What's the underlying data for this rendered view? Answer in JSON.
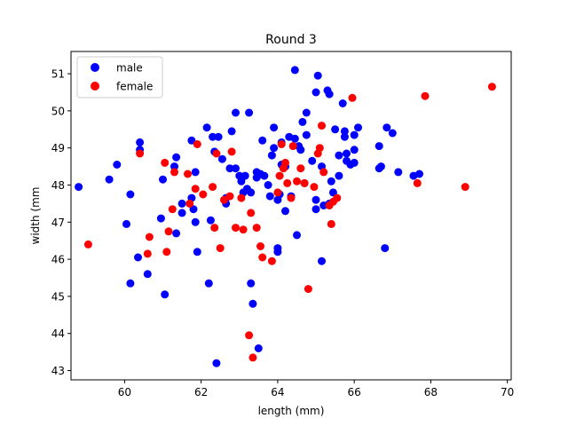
{
  "chart_data": {
    "type": "scatter",
    "title": "Round 3",
    "xlabel": "length (mm)",
    "ylabel": "width (mm",
    "xlim": [
      58.6,
      70.1
    ],
    "ylim": [
      42.75,
      51.6
    ],
    "xticks": [
      60,
      62,
      64,
      66,
      68,
      70
    ],
    "yticks": [
      43,
      44,
      45,
      46,
      47,
      48,
      49,
      50,
      51
    ],
    "grid": false,
    "legend_position": "top-left",
    "series": [
      {
        "name": "male",
        "color": "#0000ff",
        "points": [
          [
            58.8,
            47.95
          ],
          [
            59.6,
            48.15
          ],
          [
            59.8,
            48.55
          ],
          [
            60.05,
            46.95
          ],
          [
            60.15,
            47.75
          ],
          [
            60.15,
            45.35
          ],
          [
            60.35,
            46.05
          ],
          [
            60.4,
            49.15
          ],
          [
            60.4,
            48.95
          ],
          [
            60.6,
            45.6
          ],
          [
            60.95,
            47.1
          ],
          [
            61.0,
            48.15
          ],
          [
            61.05,
            45.05
          ],
          [
            61.3,
            48.5
          ],
          [
            61.35,
            48.75
          ],
          [
            61.35,
            46.7
          ],
          [
            61.5,
            47.5
          ],
          [
            61.5,
            47.25
          ],
          [
            61.75,
            47.65
          ],
          [
            61.75,
            49.2
          ],
          [
            61.8,
            47.35
          ],
          [
            61.85,
            47.0
          ],
          [
            61.85,
            48.35
          ],
          [
            61.9,
            46.2
          ],
          [
            62.15,
            49.55
          ],
          [
            62.2,
            45.35
          ],
          [
            62.25,
            47.05
          ],
          [
            62.3,
            49.3
          ],
          [
            62.35,
            48.9
          ],
          [
            62.45,
            49.3
          ],
          [
            62.4,
            43.2
          ],
          [
            62.55,
            48.7
          ],
          [
            62.65,
            47.5
          ],
          [
            62.65,
            47.65
          ],
          [
            62.75,
            48.45
          ],
          [
            62.8,
            49.45
          ],
          [
            62.9,
            49.95
          ],
          [
            62.9,
            48.45
          ],
          [
            63.0,
            48.25
          ],
          [
            63.05,
            48.1
          ],
          [
            63.15,
            48.25
          ],
          [
            63.1,
            47.8
          ],
          [
            63.2,
            47.9
          ],
          [
            63.25,
            49.95
          ],
          [
            63.3,
            47.8
          ],
          [
            63.3,
            45.35
          ],
          [
            63.35,
            44.8
          ],
          [
            63.45,
            48.35
          ],
          [
            63.45,
            48.2
          ],
          [
            63.5,
            43.6
          ],
          [
            63.55,
            48.3
          ],
          [
            63.6,
            49.2
          ],
          [
            63.65,
            48.25
          ],
          [
            63.75,
            48.0
          ],
          [
            63.8,
            47.7
          ],
          [
            63.85,
            48.8
          ],
          [
            63.9,
            49.55
          ],
          [
            63.9,
            49.0
          ],
          [
            64.0,
            47.6
          ],
          [
            64.0,
            46.3
          ],
          [
            64.0,
            46.2
          ],
          [
            64.05,
            47.75
          ],
          [
            64.1,
            48.55
          ],
          [
            64.1,
            49.15
          ],
          [
            64.2,
            47.3
          ],
          [
            64.2,
            48.5
          ],
          [
            64.3,
            49.3
          ],
          [
            64.35,
            47.7
          ],
          [
            64.45,
            49.25
          ],
          [
            64.45,
            51.1
          ],
          [
            64.5,
            46.65
          ],
          [
            64.55,
            49.05
          ],
          [
            64.6,
            48.95
          ],
          [
            64.65,
            49.7
          ],
          [
            64.7,
            48.05
          ],
          [
            64.75,
            49.95
          ],
          [
            64.75,
            49.35
          ],
          [
            64.9,
            48.65
          ],
          [
            65.0,
            47.35
          ],
          [
            65.0,
            47.6
          ],
          [
            65.0,
            50.5
          ],
          [
            65.05,
            50.95
          ],
          [
            65.15,
            48.5
          ],
          [
            65.15,
            45.95
          ],
          [
            65.2,
            47.45
          ],
          [
            65.3,
            50.55
          ],
          [
            65.35,
            50.45
          ],
          [
            65.35,
            47.5
          ],
          [
            65.4,
            48.1
          ],
          [
            65.45,
            47.8
          ],
          [
            65.5,
            49.5
          ],
          [
            65.6,
            48.25
          ],
          [
            65.6,
            48.8
          ],
          [
            65.7,
            50.2
          ],
          [
            65.75,
            49.3
          ],
          [
            65.75,
            49.45
          ],
          [
            65.8,
            48.65
          ],
          [
            65.8,
            48.85
          ],
          [
            65.9,
            48.55
          ],
          [
            66.0,
            48.6
          ],
          [
            66.0,
            49.35
          ],
          [
            66.0,
            48.95
          ],
          [
            66.1,
            49.55
          ],
          [
            66.65,
            49.05
          ],
          [
            66.65,
            48.45
          ],
          [
            66.7,
            48.5
          ],
          [
            66.8,
            46.3
          ],
          [
            66.85,
            49.55
          ],
          [
            67.0,
            49.4
          ],
          [
            67.15,
            48.35
          ],
          [
            67.55,
            48.25
          ],
          [
            67.7,
            48.3
          ]
        ]
      },
      {
        "name": "female",
        "color": "#ff0000",
        "points": [
          [
            59.05,
            46.4
          ],
          [
            60.4,
            48.85
          ],
          [
            60.6,
            46.15
          ],
          [
            60.65,
            46.6
          ],
          [
            61.05,
            48.6
          ],
          [
            61.1,
            46.2
          ],
          [
            61.15,
            46.75
          ],
          [
            61.25,
            47.35
          ],
          [
            61.3,
            48.35
          ],
          [
            61.65,
            48.3
          ],
          [
            61.7,
            47.5
          ],
          [
            61.85,
            47.9
          ],
          [
            61.9,
            49.1
          ],
          [
            62.05,
            47.75
          ],
          [
            62.3,
            47.95
          ],
          [
            62.35,
            46.85
          ],
          [
            62.4,
            48.85
          ],
          [
            62.5,
            46.3
          ],
          [
            62.6,
            47.6
          ],
          [
            62.75,
            47.7
          ],
          [
            62.8,
            48.9
          ],
          [
            62.9,
            46.85
          ],
          [
            63.05,
            47.65
          ],
          [
            63.1,
            46.8
          ],
          [
            63.25,
            43.95
          ],
          [
            63.3,
            47.25
          ],
          [
            63.35,
            43.35
          ],
          [
            63.45,
            46.85
          ],
          [
            63.55,
            46.35
          ],
          [
            63.6,
            46.05
          ],
          [
            63.85,
            45.95
          ],
          [
            64.0,
            47.8
          ],
          [
            64.05,
            48.25
          ],
          [
            64.1,
            49.1
          ],
          [
            64.15,
            48.45
          ],
          [
            64.2,
            48.6
          ],
          [
            64.25,
            48.05
          ],
          [
            64.35,
            47.65
          ],
          [
            64.4,
            49.05
          ],
          [
            64.5,
            48.1
          ],
          [
            64.6,
            48.45
          ],
          [
            64.7,
            48.05
          ],
          [
            64.8,
            45.2
          ],
          [
            64.95,
            47.95
          ],
          [
            65.05,
            48.85
          ],
          [
            65.1,
            49.0
          ],
          [
            65.15,
            49.6
          ],
          [
            65.2,
            48.35
          ],
          [
            65.35,
            47.45
          ],
          [
            65.4,
            46.95
          ],
          [
            65.45,
            47.55
          ],
          [
            65.55,
            47.65
          ],
          [
            65.95,
            50.35
          ],
          [
            67.65,
            48.05
          ],
          [
            67.85,
            50.4
          ],
          [
            68.9,
            47.95
          ],
          [
            69.6,
            50.65
          ]
        ]
      }
    ]
  }
}
